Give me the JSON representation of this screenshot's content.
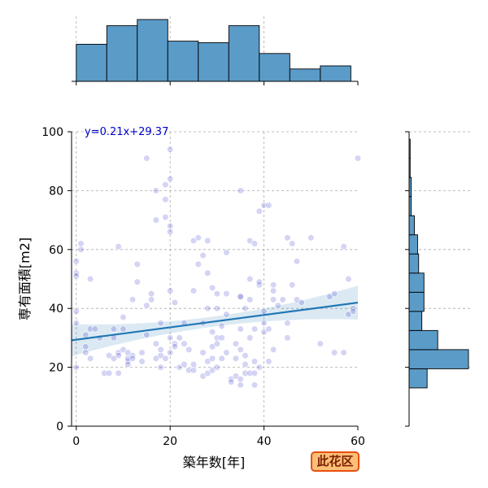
{
  "chart_data": {
    "type": "scatter",
    "title": "",
    "xlabel": "築年数[年]",
    "ylabel": "専有面積[m2]",
    "xlim": [
      -1,
      60
    ],
    "ylim": [
      0,
      100
    ],
    "xticks": [
      0,
      20,
      40,
      60
    ],
    "yticks": [
      0,
      20,
      40,
      60,
      80,
      100
    ],
    "grid": true,
    "regression": {
      "label": "y=0.21x+29.37",
      "slope": 0.21,
      "intercept": 29.37,
      "confidence_band": true,
      "color": "#1f77b4"
    },
    "point_color": "#2828c8",
    "badge": {
      "label": "此花区",
      "bg": "#fbbf78",
      "border": "#e8500f",
      "text_color": "#7a1f00"
    },
    "points": [
      [
        0,
        20
      ],
      [
        0,
        39
      ],
      [
        0,
        35
      ],
      [
        0,
        52
      ],
      [
        0,
        51
      ],
      [
        0,
        56
      ],
      [
        1,
        60
      ],
      [
        1,
        62
      ],
      [
        2,
        25
      ],
      [
        2,
        31
      ],
      [
        2,
        27
      ],
      [
        3,
        33
      ],
      [
        3,
        23
      ],
      [
        3,
        50
      ],
      [
        4,
        33
      ],
      [
        5,
        30
      ],
      [
        6,
        18
      ],
      [
        7,
        24
      ],
      [
        7,
        18
      ],
      [
        8,
        23
      ],
      [
        8,
        33
      ],
      [
        8,
        30
      ],
      [
        9,
        18
      ],
      [
        9,
        25
      ],
      [
        9,
        24
      ],
      [
        9,
        61
      ],
      [
        10,
        33
      ],
      [
        10,
        26
      ],
      [
        10,
        37
      ],
      [
        11,
        22
      ],
      [
        11,
        23
      ],
      [
        11,
        21
      ],
      [
        11,
        25
      ],
      [
        12,
        24
      ],
      [
        12,
        43
      ],
      [
        12,
        23
      ],
      [
        13,
        55
      ],
      [
        13,
        49
      ],
      [
        14,
        22
      ],
      [
        14,
        25
      ],
      [
        15,
        41
      ],
      [
        15,
        91
      ],
      [
        15,
        31
      ],
      [
        16,
        43
      ],
      [
        16,
        45
      ],
      [
        17,
        23
      ],
      [
        17,
        70
      ],
      [
        17,
        80
      ],
      [
        17,
        28
      ],
      [
        18,
        20
      ],
      [
        18,
        24
      ],
      [
        18,
        26
      ],
      [
        18,
        35
      ],
      [
        19,
        71
      ],
      [
        19,
        77
      ],
      [
        19,
        82
      ],
      [
        19,
        23
      ],
      [
        20,
        94
      ],
      [
        20,
        84
      ],
      [
        20,
        68
      ],
      [
        20,
        66
      ],
      [
        20,
        25
      ],
      [
        20,
        46
      ],
      [
        20,
        30
      ],
      [
        21,
        42
      ],
      [
        21,
        28
      ],
      [
        21,
        27
      ],
      [
        22,
        30
      ],
      [
        22,
        20
      ],
      [
        23,
        35
      ],
      [
        23,
        28
      ],
      [
        23,
        21
      ],
      [
        24,
        19
      ],
      [
        24,
        26
      ],
      [
        25,
        19
      ],
      [
        25,
        21
      ],
      [
        25,
        46
      ],
      [
        25,
        63
      ],
      [
        26,
        64
      ],
      [
        26,
        55
      ],
      [
        27,
        58
      ],
      [
        27,
        25
      ],
      [
        27,
        17
      ],
      [
        27,
        35
      ],
      [
        28,
        63
      ],
      [
        28,
        52
      ],
      [
        28,
        40
      ],
      [
        28,
        22
      ],
      [
        28,
        18
      ],
      [
        29,
        47
      ],
      [
        29,
        27
      ],
      [
        29,
        19
      ],
      [
        29,
        23
      ],
      [
        29,
        32
      ],
      [
        30,
        30
      ],
      [
        30,
        40
      ],
      [
        30,
        45
      ],
      [
        30,
        28
      ],
      [
        30,
        20
      ],
      [
        31,
        23
      ],
      [
        31,
        34
      ],
      [
        31,
        30
      ],
      [
        32,
        45
      ],
      [
        32,
        38
      ],
      [
        32,
        25
      ],
      [
        32,
        59
      ],
      [
        33,
        16
      ],
      [
        33,
        15
      ],
      [
        34,
        17
      ],
      [
        34,
        23
      ],
      [
        34,
        28
      ],
      [
        35,
        14
      ],
      [
        35,
        44
      ],
      [
        35,
        44
      ],
      [
        35,
        16
      ],
      [
        35,
        26
      ],
      [
        35,
        80
      ],
      [
        35,
        33
      ],
      [
        36,
        18
      ],
      [
        36,
        21
      ],
      [
        36,
        24
      ],
      [
        36,
        40
      ],
      [
        37,
        30
      ],
      [
        37,
        18
      ],
      [
        37,
        43
      ],
      [
        37,
        50
      ],
      [
        37,
        63
      ],
      [
        38,
        14
      ],
      [
        38,
        18
      ],
      [
        38,
        22
      ],
      [
        38,
        33
      ],
      [
        38,
        62
      ],
      [
        39,
        20
      ],
      [
        39,
        48
      ],
      [
        39,
        49
      ],
      [
        39,
        73
      ],
      [
        40,
        75
      ],
      [
        40,
        39
      ],
      [
        40,
        35
      ],
      [
        40,
        32
      ],
      [
        41,
        75
      ],
      [
        41,
        33
      ],
      [
        41,
        22
      ],
      [
        42,
        26
      ],
      [
        42,
        43
      ],
      [
        42,
        46
      ],
      [
        42,
        48
      ],
      [
        43,
        41
      ],
      [
        44,
        43
      ],
      [
        45,
        35
      ],
      [
        45,
        64
      ],
      [
        45,
        30
      ],
      [
        46,
        62
      ],
      [
        46,
        48
      ],
      [
        47,
        56
      ],
      [
        47,
        43
      ],
      [
        48,
        42
      ],
      [
        50,
        64
      ],
      [
        52,
        28
      ],
      [
        54,
        44
      ],
      [
        55,
        25
      ],
      [
        55,
        45
      ],
      [
        57,
        25
      ],
      [
        57,
        61
      ],
      [
        58,
        50
      ],
      [
        58,
        38
      ],
      [
        59,
        40
      ],
      [
        59,
        39
      ],
      [
        60,
        91
      ]
    ],
    "x_marginal": {
      "type": "histogram",
      "bins": [
        [
          0,
          6.5
        ],
        [
          6.5,
          13
        ],
        [
          13,
          19.5
        ],
        [
          19.5,
          26
        ],
        [
          26,
          32.5
        ],
        [
          32.5,
          39
        ],
        [
          39,
          45.5
        ],
        [
          45.5,
          52
        ],
        [
          52,
          58.5
        ],
        [
          58.5,
          60
        ]
      ],
      "heights": [
        12,
        18,
        20,
        13,
        12.5,
        18,
        9,
        4,
        5,
        0
      ]
    },
    "y_marginal": {
      "type": "histogram",
      "bins": [
        [
          13,
          19.5
        ],
        [
          19.5,
          26
        ],
        [
          26,
          32.5
        ],
        [
          32.5,
          39
        ],
        [
          39,
          45.5
        ],
        [
          45.5,
          52
        ],
        [
          52,
          58.5
        ],
        [
          58.5,
          65
        ],
        [
          65,
          71.5
        ],
        [
          71.5,
          78
        ],
        [
          78,
          84.5
        ],
        [
          84.5,
          91
        ],
        [
          91,
          97.5
        ]
      ],
      "heights": [
        17,
        56,
        27,
        12,
        14,
        14,
        9,
        8,
        5,
        2,
        2,
        1,
        1
      ]
    }
  }
}
